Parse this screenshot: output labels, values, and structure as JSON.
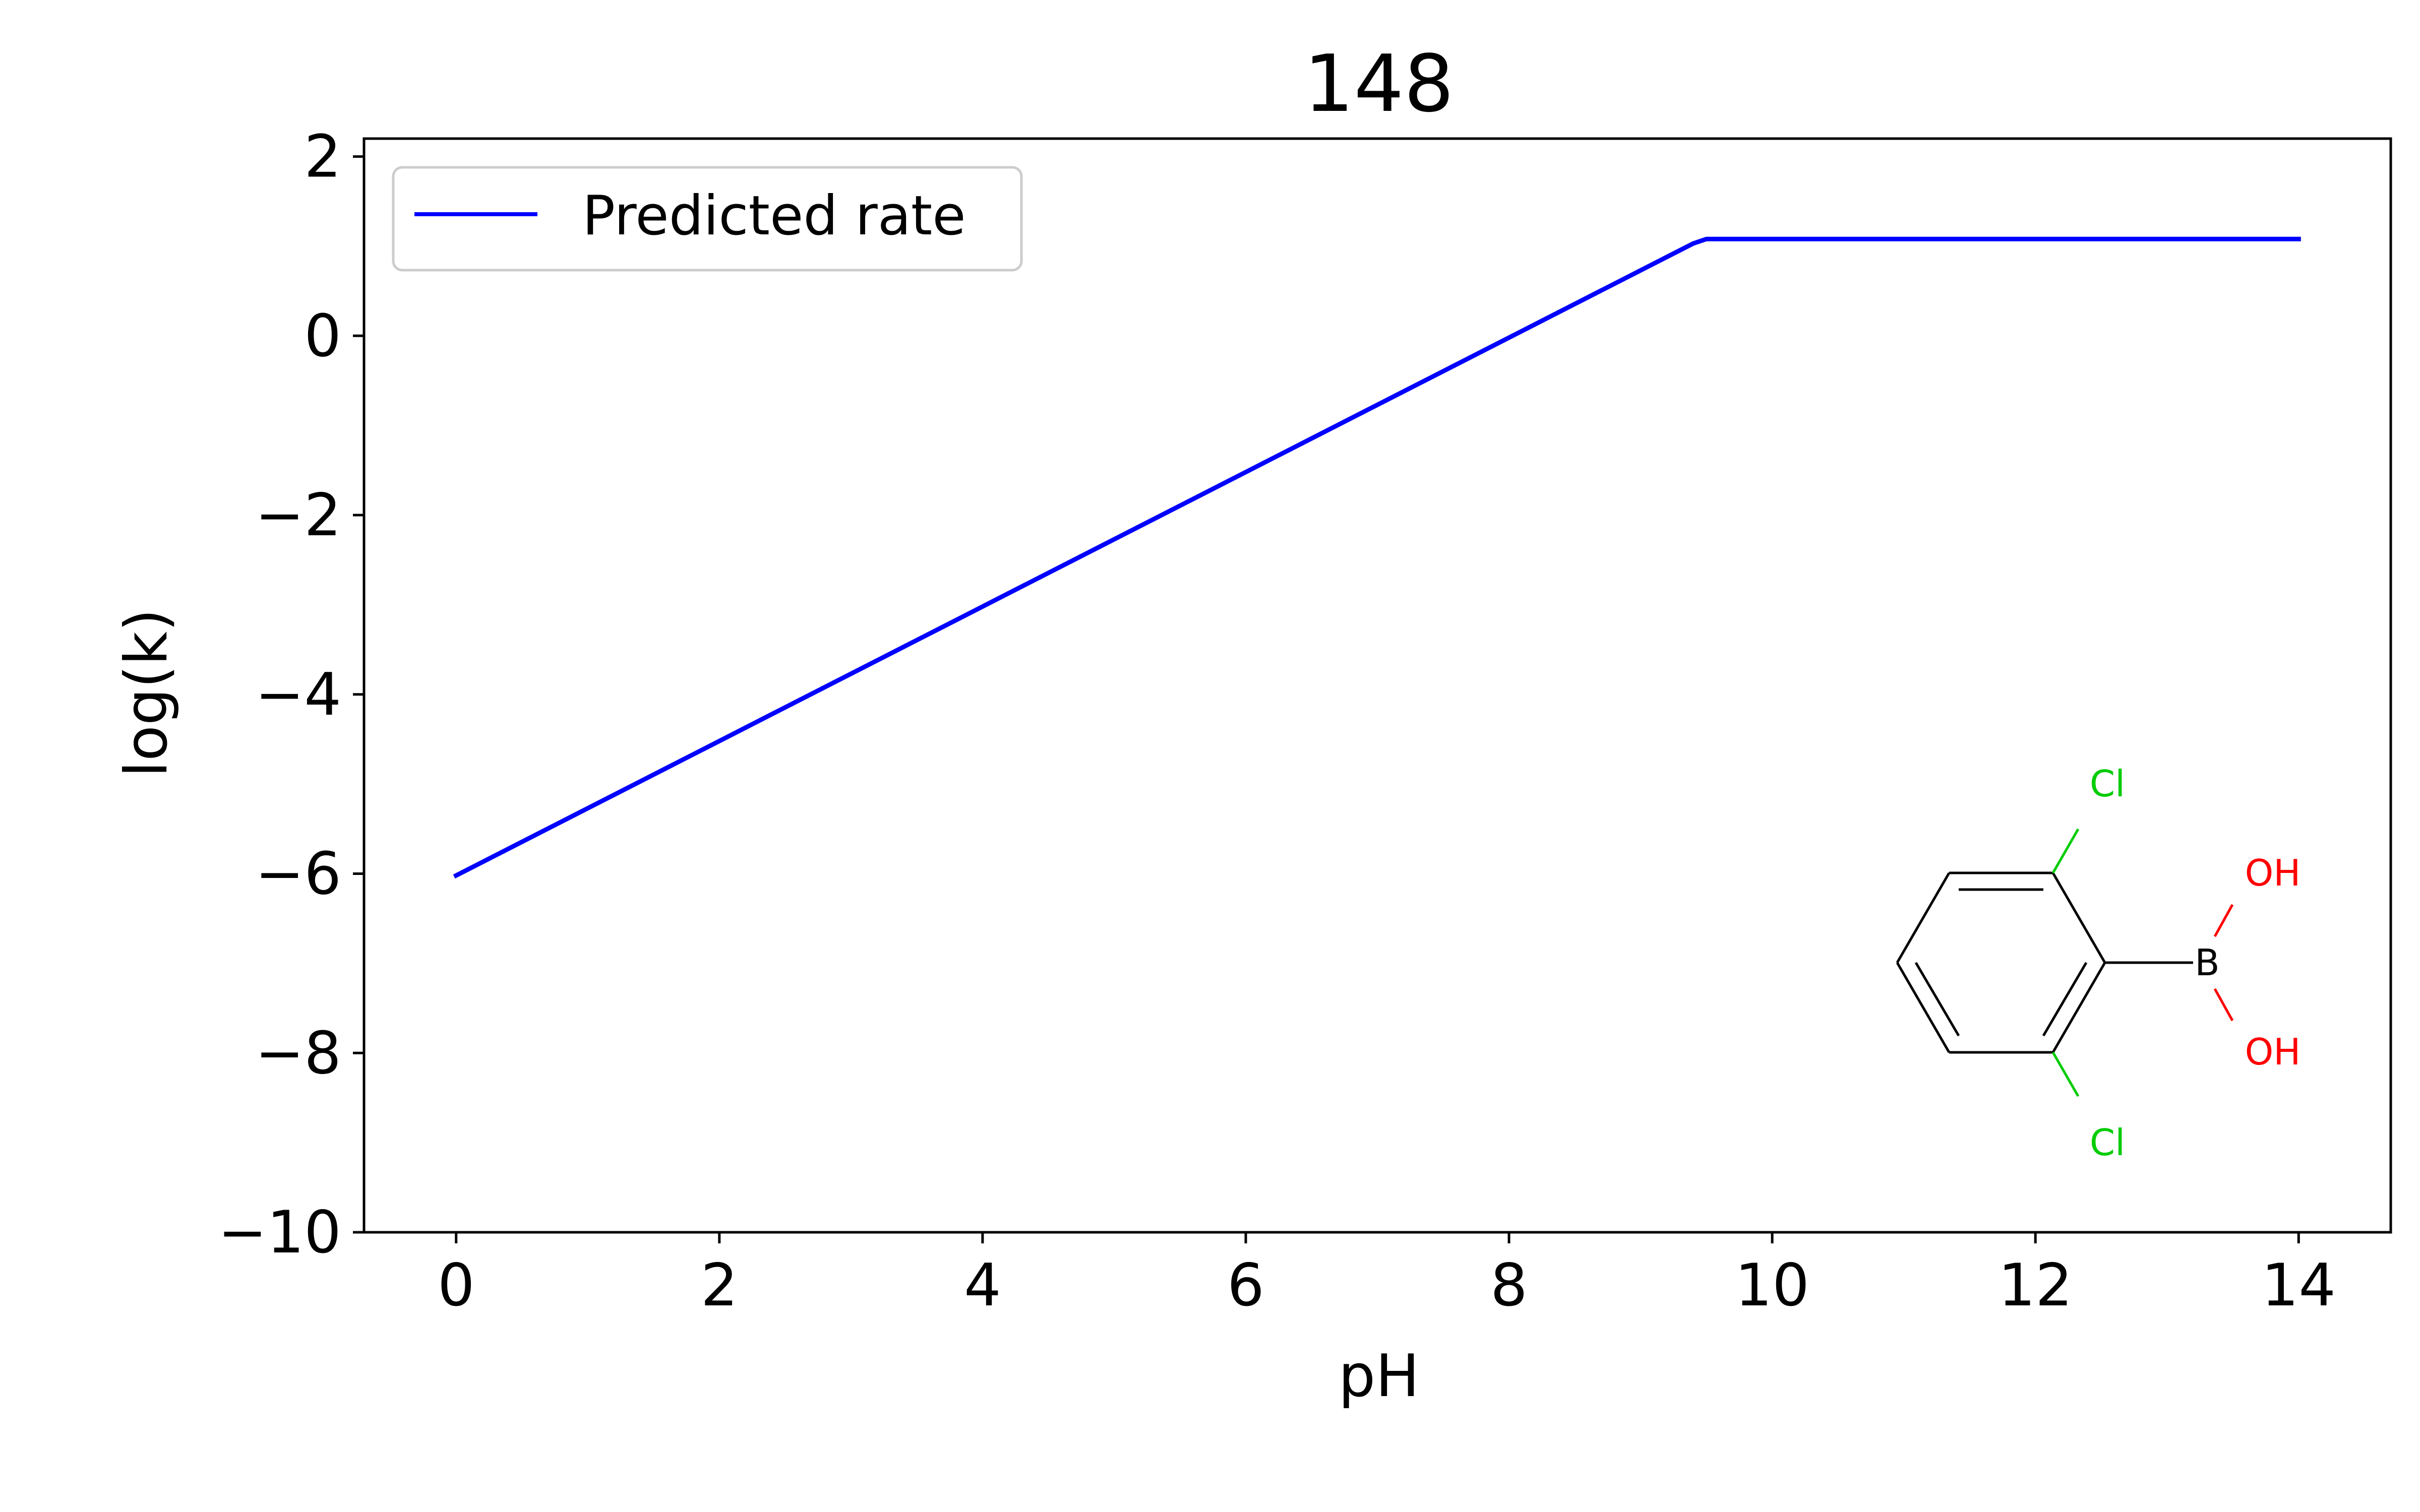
{
  "chart_data": {
    "type": "line",
    "title": "148",
    "xlabel": "pH",
    "ylabel": "log(k)",
    "xlim": [
      -0.7,
      14.7
    ],
    "ylim": [
      -10,
      2.2
    ],
    "xticks": [
      0,
      2,
      4,
      6,
      8,
      10,
      12,
      14
    ],
    "yticks": [
      -10,
      -8,
      -6,
      -4,
      -2,
      0,
      2
    ],
    "xtick_labels": [
      "0",
      "2",
      "4",
      "6",
      "8",
      "10",
      "12",
      "14"
    ],
    "ytick_labels": [
      "−10",
      "−8",
      "−6",
      "−4",
      "−2",
      "0",
      "2"
    ],
    "grid": false,
    "legend_position": "upper-left",
    "series": [
      {
        "name": "Predicted rate",
        "color": "#0000ff",
        "x": [
          0,
          9.4,
          9.5,
          10,
          14
        ],
        "y": [
          -6.02,
          1.03,
          1.08,
          1.08,
          1.08
        ]
      }
    ],
    "inset": {
      "kind": "molecule",
      "atom_labels": [
        "Cl",
        "Cl",
        "B",
        "OH",
        "OH"
      ],
      "colors": {
        "Cl": "#00cc00",
        "O": "#ff0000",
        "B": "#000000"
      }
    }
  }
}
